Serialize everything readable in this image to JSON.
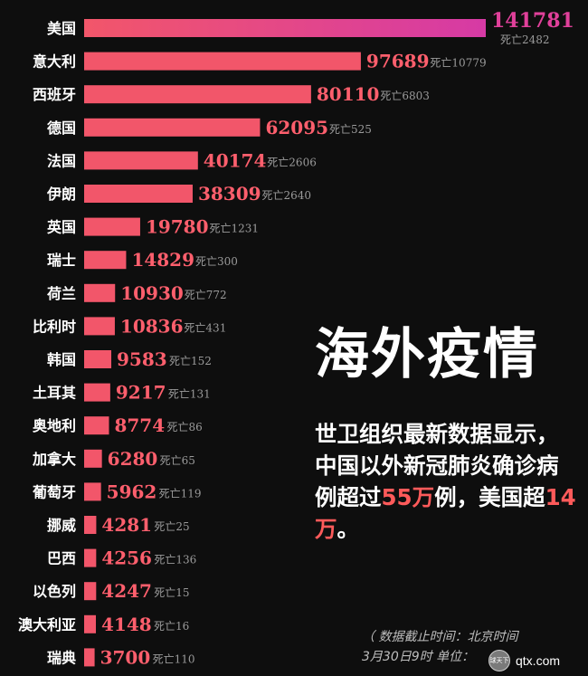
{
  "chart_data": {
    "type": "bar",
    "orientation": "horizontal",
    "death_prefix": "死亡",
    "categories": [
      "美国",
      "意大利",
      "西班牙",
      "德国",
      "法国",
      "伊朗",
      "英国",
      "瑞士",
      "荷兰",
      "比利时",
      "韩国",
      "土耳其",
      "奥地利",
      "加拿大",
      "葡萄牙",
      "挪威",
      "巴西",
      "以色列",
      "澳大利亚",
      "瑞典"
    ],
    "values": [
      141781,
      97689,
      80110,
      62095,
      40174,
      38309,
      19780,
      14829,
      10930,
      10836,
      9583,
      9217,
      8774,
      6280,
      5962,
      4281,
      4256,
      4247,
      4148,
      3700
    ],
    "deaths": [
      2482,
      10779,
      6803,
      525,
      2606,
      2640,
      1231,
      300,
      772,
      431,
      152,
      131,
      86,
      65,
      119,
      25,
      136,
      15,
      16,
      110
    ],
    "colors": {
      "bar_start": "#f2566a",
      "bar_end_top": "#d63aa5",
      "value_text": "#ff5f6d",
      "value_text_top": "#e0409a",
      "death_text": "#9a9a9a"
    }
  },
  "headline": "海外疫情",
  "blurb": {
    "part1": "世卫组织最新数据显示，中国以外新冠肺炎确诊病例超过",
    "highlight1": "55万",
    "part2": "例，美国超",
    "highlight2": "14万",
    "part3": "。"
  },
  "footnote": {
    "line1": "（ 数据截止时间：北京时间",
    "line2": "3月30日9时  单位："
  },
  "watermark": {
    "logo_text": "球天下",
    "site": "qtx.com"
  }
}
